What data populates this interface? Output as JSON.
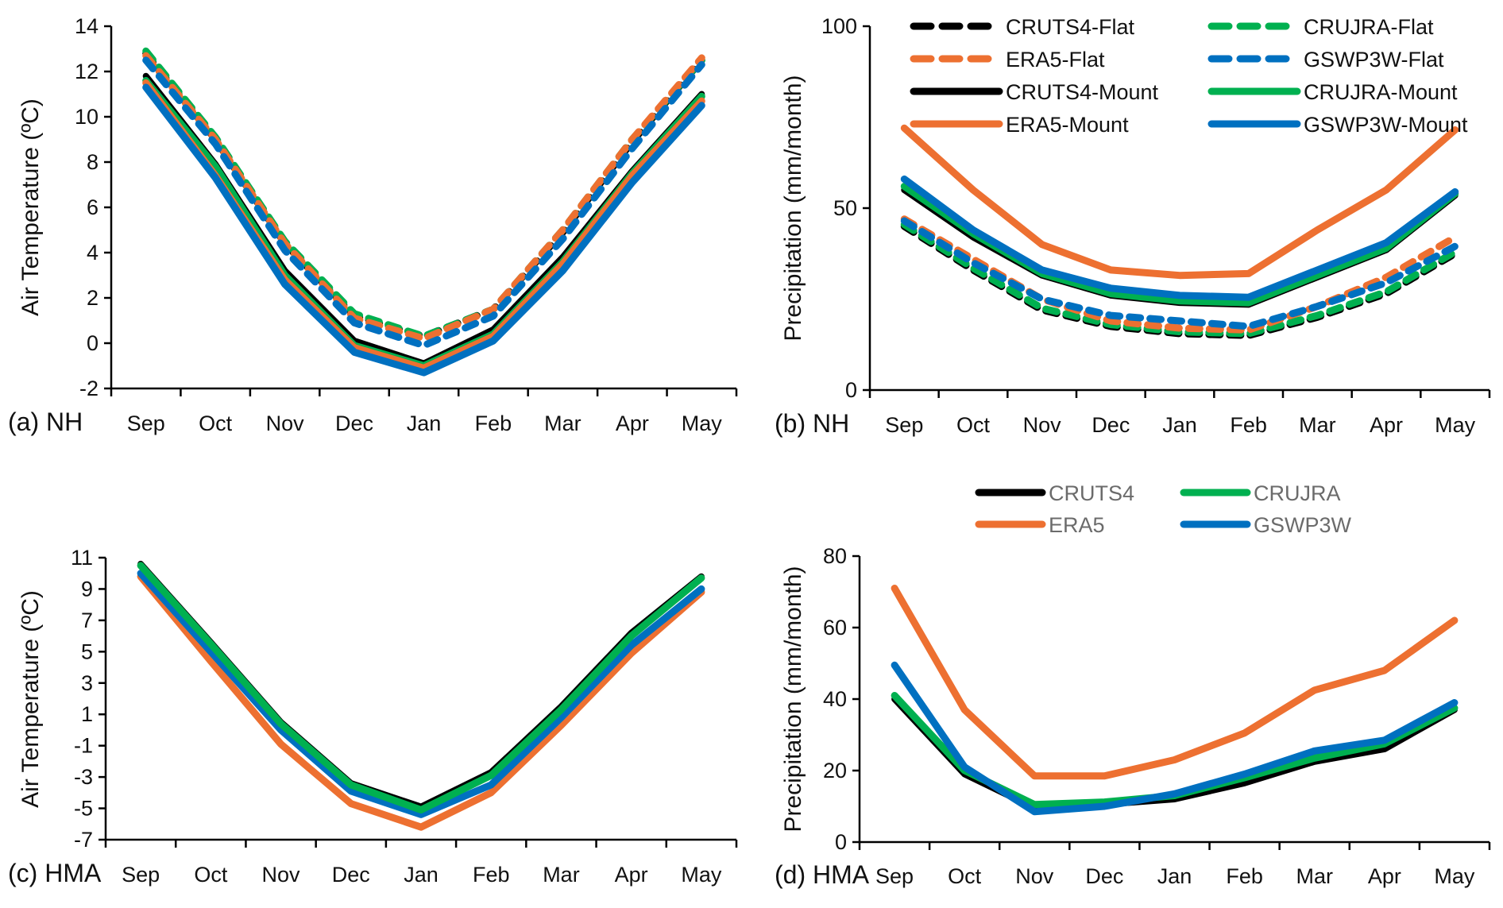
{
  "chart_data": [
    {
      "id": "a",
      "type": "line",
      "panel_label": "(a) NH",
      "title": "",
      "xlabel": "",
      "ylabel": "Air Temperature (ºC)",
      "categories": [
        "Sep",
        "Oct",
        "Nov",
        "Dec",
        "Jan",
        "Feb",
        "Mar",
        "Apr",
        "May"
      ],
      "ylim": [
        -2,
        14
      ],
      "yticks": [
        -2,
        0,
        2,
        4,
        6,
        8,
        10,
        12,
        14
      ],
      "ytick_labels": [
        "-2",
        "0",
        "2",
        "4",
        "6",
        "8",
        "10",
        "12",
        "14"
      ],
      "grid": false,
      "legend": null,
      "series": [
        {
          "name": "CRUTS4-Flat",
          "color": "#000000",
          "dash": true,
          "values": [
            12.8,
            9.0,
            4.4,
            1.2,
            0.3,
            1.5,
            4.9,
            8.9,
            12.5
          ]
        },
        {
          "name": "CRUJRA-Flat",
          "color": "#00b050",
          "dash": true,
          "values": [
            12.9,
            9.1,
            4.5,
            1.3,
            0.3,
            1.5,
            5.0,
            9.0,
            12.5
          ]
        },
        {
          "name": "ERA5-Flat",
          "color": "#ed7031",
          "dash": true,
          "values": [
            12.7,
            9.0,
            4.4,
            1.1,
            0.2,
            1.5,
            5.0,
            9.0,
            12.6
          ]
        },
        {
          "name": "GSWP3W-Flat",
          "color": "#0070c0",
          "dash": true,
          "values": [
            12.5,
            8.8,
            4.1,
            0.9,
            -0.1,
            1.2,
            4.6,
            8.6,
            12.3
          ]
        },
        {
          "name": "CRUTS4-Mount",
          "color": "#000000",
          "dash": false,
          "values": [
            11.8,
            7.9,
            3.2,
            0.1,
            -0.9,
            0.6,
            3.8,
            7.6,
            11.0
          ]
        },
        {
          "name": "CRUJRA-Mount",
          "color": "#00b050",
          "dash": false,
          "values": [
            11.6,
            7.8,
            3.0,
            -0.1,
            -1.0,
            0.4,
            3.6,
            7.5,
            10.9
          ]
        },
        {
          "name": "ERA5-Mount",
          "color": "#ed7031",
          "dash": false,
          "values": [
            11.5,
            7.4,
            2.8,
            -0.2,
            -1.1,
            0.3,
            3.5,
            7.4,
            10.7
          ]
        },
        {
          "name": "GSWP3W-Mount",
          "color": "#0070c0",
          "dash": false,
          "values": [
            11.3,
            7.3,
            2.6,
            -0.4,
            -1.3,
            0.1,
            3.2,
            7.1,
            10.5
          ]
        }
      ]
    },
    {
      "id": "b",
      "type": "line",
      "panel_label": "(b) NH",
      "title": "",
      "xlabel": "",
      "ylabel": "Precipitation (mm/month)",
      "categories": [
        "Sep",
        "Oct",
        "Nov",
        "Dec",
        "Jan",
        "Feb",
        "Mar",
        "Apr",
        "May"
      ],
      "ylim": [
        0,
        100
      ],
      "yticks": [
        0,
        50,
        100
      ],
      "ytick_labels": [
        "0",
        "50",
        "100"
      ],
      "grid": false,
      "legend": "top-center",
      "legend_columns": 2,
      "series": [
        {
          "name": "CRUTS4-Flat",
          "color": "#000000",
          "dash": true,
          "values": [
            45,
            33,
            22,
            17.5,
            15.5,
            15,
            20,
            26.5,
            37.5
          ]
        },
        {
          "name": "CRUJRA-Flat",
          "color": "#00b050",
          "dash": true,
          "values": [
            45.5,
            33.5,
            22.5,
            18,
            16,
            15.5,
            20.5,
            27,
            38
          ]
        },
        {
          "name": "ERA5-Flat",
          "color": "#ed7031",
          "dash": true,
          "values": [
            47,
            36,
            25,
            19,
            17,
            16.5,
            23,
            31,
            42
          ]
        },
        {
          "name": "GSWP3W-Flat",
          "color": "#0070c0",
          "dash": true,
          "values": [
            46.5,
            35,
            25,
            20.5,
            19,
            17.5,
            23,
            29.5,
            39.5
          ]
        },
        {
          "name": "CRUTS4-Mount",
          "color": "#000000",
          "dash": false,
          "values": [
            55,
            42,
            31.5,
            26,
            24,
            23.5,
            31,
            38.5,
            53.5
          ]
        },
        {
          "name": "CRUJRA-Mount",
          "color": "#00b050",
          "dash": false,
          "values": [
            56,
            43,
            32,
            26.5,
            24.5,
            24,
            31.5,
            39,
            54
          ]
        },
        {
          "name": "ERA5-Mount",
          "color": "#ed7031",
          "dash": false,
          "values": [
            72,
            55,
            40,
            33,
            31.5,
            32,
            44,
            55,
            71.5
          ]
        },
        {
          "name": "GSWP3W-Mount",
          "color": "#0070c0",
          "dash": false,
          "values": [
            58,
            44,
            33,
            28,
            26,
            25.5,
            33,
            40.5,
            54.5
          ]
        }
      ]
    },
    {
      "id": "c",
      "type": "line",
      "panel_label": "(c) HMA",
      "title": "",
      "xlabel": "",
      "ylabel": "Air Temperature (ºC)",
      "categories": [
        "Sep",
        "Oct",
        "Nov",
        "Dec",
        "Jan",
        "Feb",
        "Mar",
        "Apr",
        "May"
      ],
      "ylim": [
        -7,
        11
      ],
      "yticks": [
        -7,
        -5,
        -3,
        -1,
        1,
        3,
        5,
        7,
        9,
        11
      ],
      "ytick_labels": [
        "-7",
        "-5",
        "-3",
        "-1",
        "1",
        "3",
        "5",
        "7",
        "9",
        "11"
      ],
      "grid": false,
      "legend": null,
      "series": [
        {
          "name": "CRUTS4",
          "color": "#000000",
          "dash": false,
          "values": [
            10.6,
            5.6,
            0.5,
            -3.4,
            -4.9,
            -2.7,
            1.5,
            6.2,
            9.8
          ]
        },
        {
          "name": "ERA5",
          "color": "#ed7031",
          "dash": false,
          "values": [
            9.8,
            4.4,
            -0.9,
            -4.7,
            -6.2,
            -4.0,
            0.3,
            4.9,
            8.8
          ]
        },
        {
          "name": "GSWP3W",
          "color": "#0070c0",
          "dash": false,
          "values": [
            10.0,
            5.0,
            0.0,
            -3.9,
            -5.4,
            -3.5,
            0.8,
            5.4,
            9.0
          ]
        },
        {
          "name": "CRUJRA",
          "color": "#00b050",
          "dash": false,
          "values": [
            10.5,
            5.5,
            0.4,
            -3.5,
            -5.1,
            -2.9,
            1.3,
            6.0,
            9.7
          ]
        }
      ]
    },
    {
      "id": "d",
      "type": "line",
      "panel_label": "(d) HMA",
      "title": "",
      "xlabel": "",
      "ylabel": "Precipitation (mm/month)",
      "categories": [
        "Sep",
        "Oct",
        "Nov",
        "Dec",
        "Jan",
        "Feb",
        "Mar",
        "Apr",
        "May"
      ],
      "ylim": [
        0,
        80
      ],
      "yticks": [
        0,
        20,
        40,
        60,
        80
      ],
      "ytick_labels": [
        "0",
        "20",
        "40",
        "60",
        "80"
      ],
      "grid": false,
      "legend": "top-center",
      "legend_columns": 2,
      "series": [
        {
          "name": "CRUTS4",
          "color": "#000000",
          "dash": false,
          "values": [
            40,
            19,
            9.5,
            10.5,
            12,
            16.5,
            22.5,
            26,
            37
          ]
        },
        {
          "name": "CRUJRA",
          "color": "#00b050",
          "dash": false,
          "values": [
            41,
            20,
            10.5,
            11.2,
            13,
            18,
            23.5,
            27.5,
            37.5
          ]
        },
        {
          "name": "ERA5",
          "color": "#ed7031",
          "dash": false,
          "values": [
            71,
            37,
            18.5,
            18.5,
            23,
            30.5,
            42.5,
            48,
            62
          ]
        },
        {
          "name": "GSWP3W",
          "color": "#0070c0",
          "dash": false,
          "values": [
            49.5,
            21,
            8.5,
            10,
            13.5,
            19,
            25.5,
            28.5,
            39
          ]
        }
      ]
    }
  ]
}
